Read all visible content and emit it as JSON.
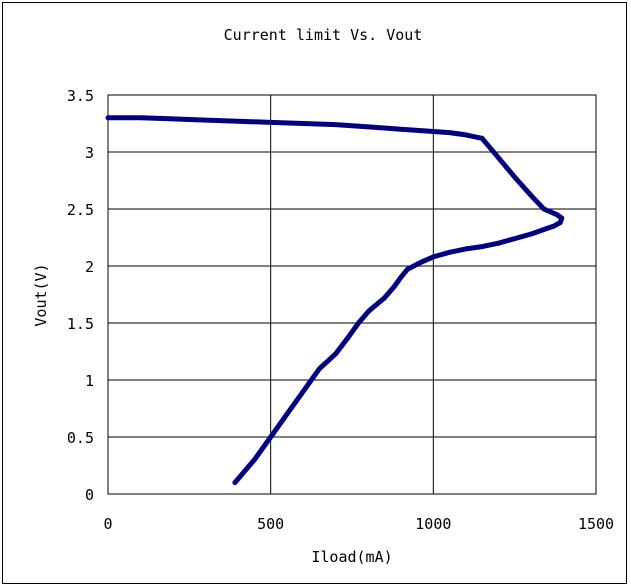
{
  "chart_data": {
    "type": "line",
    "title": "Current limit Vs. Vout",
    "xlabel": "Iload(mA)",
    "ylabel": "Vout(V)",
    "xlim": [
      0,
      1500
    ],
    "ylim": [
      0,
      3.5
    ],
    "x_ticks": [
      0,
      500,
      1000,
      1500
    ],
    "y_ticks": [
      0,
      0.5,
      1,
      1.5,
      2,
      2.5,
      3,
      3.5
    ],
    "x_tick_labels": [
      "0",
      "500",
      "1000",
      "1500"
    ],
    "y_tick_labels": [
      "0",
      "0.5",
      "1",
      "1.5",
      "2",
      "2.5",
      "3",
      "3.5"
    ],
    "grid": true,
    "legend": "none",
    "series": [
      {
        "color": "#000080",
        "x": [
          0,
          100,
          200,
          300,
          400,
          500,
          600,
          700,
          800,
          900,
          1000,
          1050,
          1100,
          1150,
          1200,
          1250,
          1300,
          1340,
          1380,
          1395,
          1390,
          1370,
          1340,
          1300,
          1250,
          1200,
          1150,
          1100,
          1050,
          1000,
          960,
          940,
          920,
          900,
          880,
          850,
          820,
          800,
          770,
          740,
          700,
          650,
          600,
          550,
          500,
          450,
          420,
          390
        ],
        "y": [
          3.3,
          3.3,
          3.29,
          3.28,
          3.27,
          3.26,
          3.25,
          3.24,
          3.22,
          3.2,
          3.18,
          3.17,
          3.15,
          3.12,
          2.95,
          2.78,
          2.62,
          2.5,
          2.45,
          2.42,
          2.38,
          2.35,
          2.32,
          2.28,
          2.24,
          2.2,
          2.17,
          2.15,
          2.12,
          2.08,
          2.03,
          2.0,
          1.97,
          1.9,
          1.82,
          1.72,
          1.65,
          1.6,
          1.5,
          1.38,
          1.23,
          1.1,
          0.9,
          0.7,
          0.5,
          0.3,
          0.2,
          0.1
        ]
      }
    ]
  }
}
